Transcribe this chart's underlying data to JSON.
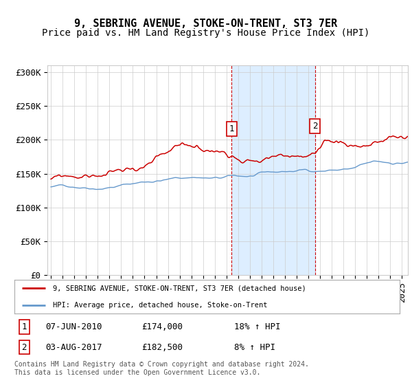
{
  "title": "9, SEBRING AVENUE, STOKE-ON-TRENT, ST3 7ER",
  "subtitle": "Price paid vs. HM Land Registry's House Price Index (HPI)",
  "ylabel_ticks": [
    "£0",
    "£50K",
    "£100K",
    "£150K",
    "£200K",
    "£250K",
    "£300K"
  ],
  "ytick_values": [
    0,
    50000,
    100000,
    150000,
    200000,
    250000,
    300000
  ],
  "ylim": [
    0,
    310000
  ],
  "xlim_start": 1994.7,
  "xlim_end": 2025.5,
  "sale1_date": 2010.44,
  "sale1_price": 174000,
  "sale1_label": "1",
  "sale2_date": 2017.58,
  "sale2_price": 182500,
  "sale2_label": "2",
  "legend_entry1": "9, SEBRING AVENUE, STOKE-ON-TRENT, ST3 7ER (detached house)",
  "legend_entry2": "HPI: Average price, detached house, Stoke-on-Trent",
  "table_row1": [
    "1",
    "07-JUN-2010",
    "£174,000",
    "18% ↑ HPI"
  ],
  "table_row2": [
    "2",
    "03-AUG-2017",
    "£182,500",
    "8% ↑ HPI"
  ],
  "footer": "Contains HM Land Registry data © Crown copyright and database right 2024.\nThis data is licensed under the Open Government Licence v3.0.",
  "line_color_red": "#cc0000",
  "line_color_blue": "#6699cc",
  "shade_color": "#ddeeff",
  "grid_color": "#cccccc",
  "background_color": "#ffffff",
  "sale_line_color": "#cc0000",
  "title_fontsize": 11,
  "subtitle_fontsize": 10,
  "tick_fontsize": 9
}
